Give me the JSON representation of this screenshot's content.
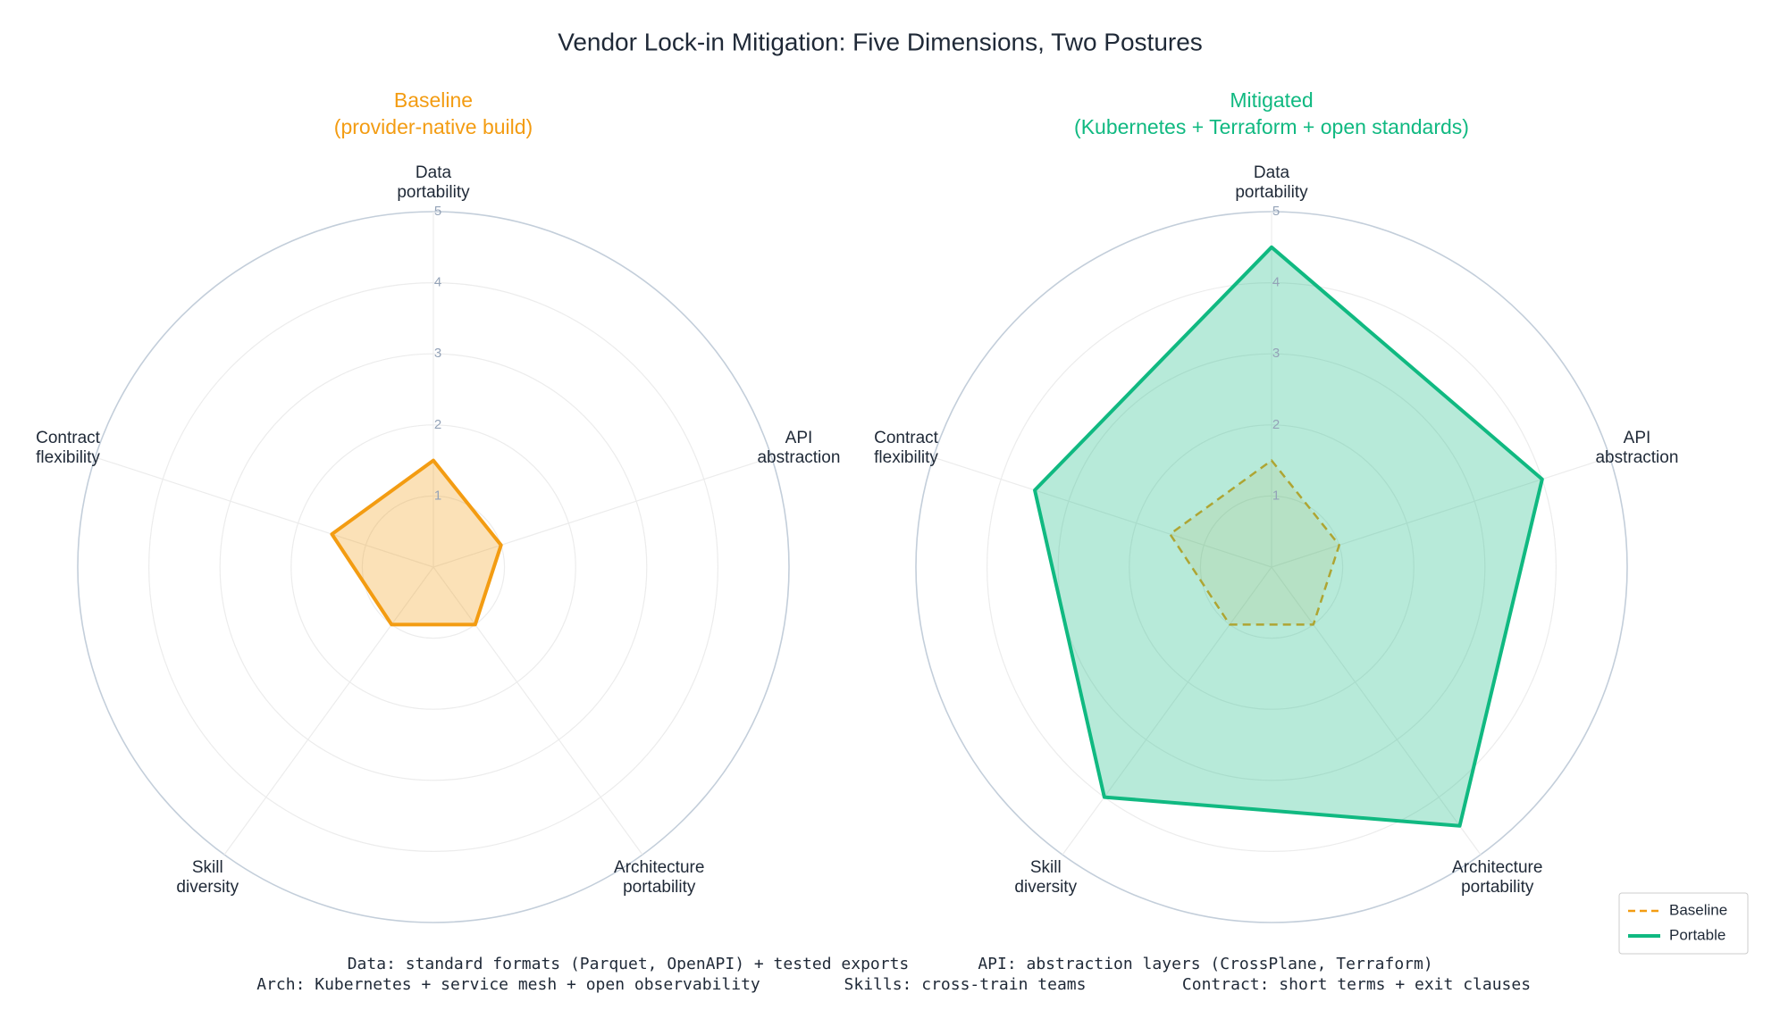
{
  "title": "Vendor Lock-in Mitigation: Five Dimensions, Two Postures",
  "notes": [
    "Data: standard formats (Parquet, OpenAPI) + tested exports",
    "API: abstraction layers (CrossPlane, Terraform)",
    "Arch: Kubernetes + service mesh + open observability",
    "Skills: cross-train teams",
    "Contract: short terms + exit clauses"
  ],
  "chart_data": [
    {
      "type": "radar",
      "title": "Baseline",
      "subtitle": "(provider-native build)",
      "title_color": "#f39c12",
      "categories": [
        "Data portability",
        "API abstraction",
        "Architecture portability",
        "Skill diversity",
        "Contract flexibility"
      ],
      "rlim": [
        0,
        5
      ],
      "rticks": [
        1,
        2,
        3,
        4,
        5
      ],
      "grid": true,
      "series": [
        {
          "name": "Baseline",
          "color": "#f39c12",
          "line_style": "solid",
          "fill_opacity": 0.3,
          "values": [
            1.5,
            1,
            1,
            1,
            1.5
          ]
        }
      ]
    },
    {
      "type": "radar",
      "title": "Mitigated",
      "subtitle": "(Kubernetes + Terraform + open standards)",
      "title_color": "#10b981",
      "categories": [
        "Data portability",
        "API abstraction",
        "Architecture portability",
        "Skill diversity",
        "Contract flexibility"
      ],
      "rlim": [
        0,
        5
      ],
      "rticks": [
        1,
        2,
        3,
        4,
        5
      ],
      "grid": true,
      "legend": "lower right",
      "series": [
        {
          "name": "Baseline",
          "color": "#f39c12",
          "line_style": "dashed",
          "fill_opacity": 0.12,
          "values": [
            1.5,
            1,
            1,
            1,
            1.5
          ]
        },
        {
          "name": "Portable",
          "color": "#10b981",
          "line_style": "solid",
          "fill_opacity": 0.3,
          "values": [
            4.5,
            4,
            4.5,
            4,
            3.5
          ]
        }
      ]
    }
  ]
}
